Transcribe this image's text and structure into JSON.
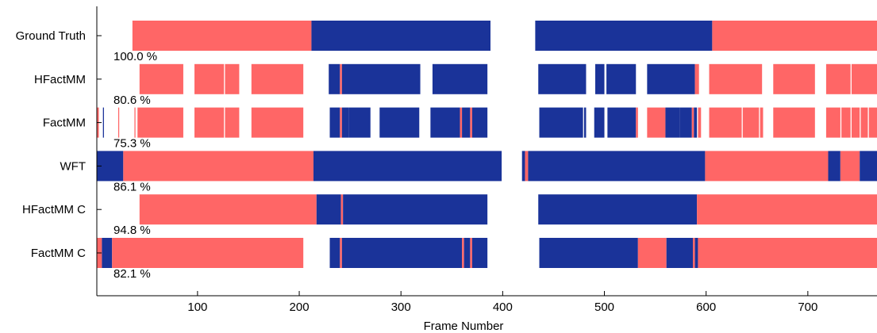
{
  "chart_data": {
    "type": "bar",
    "xlabel": "Frame Number",
    "ylabel": "",
    "xlim": [
      1,
      768
    ],
    "xticks": [
      100,
      200,
      300,
      400,
      500,
      600,
      700
    ],
    "grid": false,
    "colors": {
      "red": "#ff6666",
      "blue": "#1a3399"
    },
    "rows": [
      {
        "label": "Ground Truth",
        "accuracy": "100.0 %",
        "segments": [
          [
            36,
            212,
            "red"
          ],
          [
            212,
            388,
            "blue"
          ],
          [
            432,
            606,
            "blue"
          ],
          [
            606,
            768,
            "red"
          ]
        ]
      },
      {
        "label": "HFactMM",
        "accuracy": "80.6 %",
        "segments": [
          [
            43,
            86,
            "red"
          ],
          [
            97,
            126,
            "red"
          ],
          [
            127,
            141,
            "red"
          ],
          [
            153,
            204,
            "red"
          ],
          [
            229,
            240,
            "blue"
          ],
          [
            240,
            242,
            "red"
          ],
          [
            242,
            319,
            "blue"
          ],
          [
            331,
            385,
            "blue"
          ],
          [
            435,
            482,
            "blue"
          ],
          [
            491,
            500,
            "blue"
          ],
          [
            502,
            531,
            "blue"
          ],
          [
            542,
            589,
            "blue"
          ],
          [
            589,
            593,
            "red"
          ],
          [
            603,
            655,
            "red"
          ],
          [
            666,
            707,
            "red"
          ],
          [
            718,
            742,
            "red"
          ],
          [
            743,
            768,
            "red"
          ]
        ]
      },
      {
        "label": "FactMM",
        "accuracy": "75.3 %",
        "segments": [
          [
            1,
            3,
            "red"
          ],
          [
            7,
            8,
            "blue"
          ],
          [
            22,
            23,
            "red"
          ],
          [
            38,
            39,
            "red"
          ],
          [
            41,
            86,
            "red"
          ],
          [
            97,
            126,
            "red"
          ],
          [
            127,
            141,
            "red"
          ],
          [
            153,
            204,
            "red"
          ],
          [
            230,
            240,
            "blue"
          ],
          [
            240,
            242,
            "red"
          ],
          [
            242,
            249,
            "blue"
          ],
          [
            249,
            270,
            "blue"
          ],
          [
            279,
            318,
            "blue"
          ],
          [
            329,
            358,
            "blue"
          ],
          [
            358,
            360,
            "red"
          ],
          [
            360,
            368,
            "blue"
          ],
          [
            368,
            370,
            "red"
          ],
          [
            370,
            385,
            "blue"
          ],
          [
            436,
            479,
            "blue"
          ],
          [
            480,
            482,
            "blue"
          ],
          [
            490,
            500,
            "blue"
          ],
          [
            503,
            531,
            "blue"
          ],
          [
            531,
            533,
            "red"
          ],
          [
            542,
            560,
            "red"
          ],
          [
            560,
            574,
            "blue"
          ],
          [
            574,
            586,
            "blue"
          ],
          [
            586,
            588,
            "red"
          ],
          [
            588,
            591,
            "blue"
          ],
          [
            592,
            595,
            "red"
          ],
          [
            603,
            635,
            "red"
          ],
          [
            636,
            652,
            "red"
          ],
          [
            653,
            656,
            "red"
          ],
          [
            666,
            707,
            "red"
          ],
          [
            718,
            732,
            "red"
          ],
          [
            733,
            742,
            "red"
          ],
          [
            743,
            751,
            "red"
          ],
          [
            752,
            759,
            "red"
          ],
          [
            760,
            768,
            "red"
          ]
        ]
      },
      {
        "label": "WFT",
        "accuracy": "86.1 %",
        "segments": [
          [
            1,
            27,
            "blue"
          ],
          [
            27,
            214,
            "red"
          ],
          [
            214,
            399,
            "blue"
          ],
          [
            419,
            422,
            "blue"
          ],
          [
            422,
            425,
            "red"
          ],
          [
            425,
            599,
            "blue"
          ],
          [
            599,
            720,
            "red"
          ],
          [
            720,
            732,
            "blue"
          ],
          [
            732,
            751,
            "red"
          ],
          [
            751,
            768,
            "blue"
          ]
        ]
      },
      {
        "label": "HFactMM C",
        "accuracy": "94.8 %",
        "segments": [
          [
            43,
            217,
            "red"
          ],
          [
            217,
            241,
            "blue"
          ],
          [
            241,
            243,
            "red"
          ],
          [
            243,
            385,
            "blue"
          ],
          [
            435,
            591,
            "blue"
          ],
          [
            591,
            768,
            "red"
          ]
        ]
      },
      {
        "label": "FactMM C",
        "accuracy": "82.1 %",
        "segments": [
          [
            1,
            6,
            "red"
          ],
          [
            6,
            16,
            "blue"
          ],
          [
            16,
            204,
            "red"
          ],
          [
            230,
            240,
            "blue"
          ],
          [
            240,
            242,
            "red"
          ],
          [
            242,
            360,
            "blue"
          ],
          [
            360,
            362,
            "red"
          ],
          [
            362,
            368,
            "blue"
          ],
          [
            368,
            370,
            "red"
          ],
          [
            370,
            385,
            "blue"
          ],
          [
            436,
            533,
            "blue"
          ],
          [
            533,
            561,
            "red"
          ],
          [
            561,
            587,
            "blue"
          ],
          [
            587,
            589,
            "red"
          ],
          [
            589,
            592,
            "blue"
          ],
          [
            592,
            768,
            "red"
          ]
        ]
      }
    ]
  }
}
